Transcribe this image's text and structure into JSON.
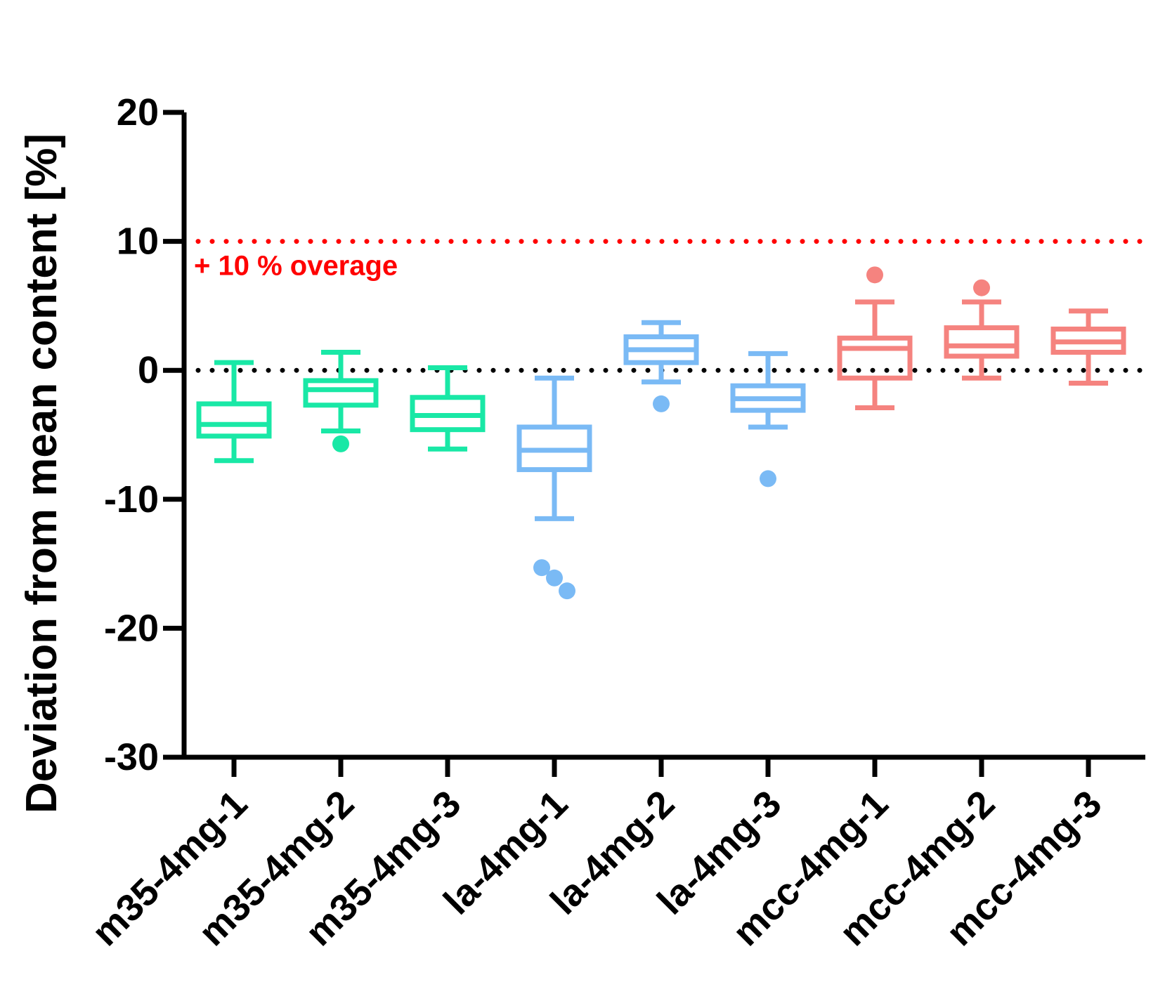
{
  "chart_data": {
    "type": "boxplot",
    "ylabel": "Deviation from mean content [%]",
    "ylim": [
      -30,
      20
    ],
    "yticks": [
      20,
      10,
      0,
      -10,
      -20,
      -30
    ],
    "grid": false,
    "reference_lines": [
      {
        "y": 10,
        "color": "#ff0000",
        "style": "dotted",
        "label": "+ 10 % overage"
      },
      {
        "y": 0,
        "color": "#000000",
        "style": "dotted",
        "label": ""
      }
    ],
    "categories": [
      "m35-4mg-1",
      "m35-4mg-2",
      "m35-4mg-3",
      "la-4mg-1",
      "la-4mg-2",
      "la-4mg-3",
      "mcc-4mg-1",
      "mcc-4mg-2",
      "mcc-4mg-3"
    ],
    "series": [
      {
        "name": "m35-4mg-1",
        "color": "#19e8a6",
        "whisker_low": -7.0,
        "q1": -5.1,
        "median": -4.2,
        "q3": -2.6,
        "whisker_high": 0.6,
        "outliers": []
      },
      {
        "name": "m35-4mg-2",
        "color": "#19e8a6",
        "whisker_low": -4.7,
        "q1": -2.7,
        "median": -1.5,
        "q3": -0.8,
        "whisker_high": 1.4,
        "outliers": [
          -5.7
        ]
      },
      {
        "name": "m35-4mg-3",
        "color": "#19e8a6",
        "whisker_low": -6.1,
        "q1": -4.6,
        "median": -3.5,
        "q3": -2.1,
        "whisker_high": 0.2,
        "outliers": []
      },
      {
        "name": "la-4mg-1",
        "color": "#7abaf5",
        "whisker_low": -11.5,
        "q1": -7.7,
        "median": -6.2,
        "q3": -4.4,
        "whisker_high": -0.6,
        "outliers": [
          -15.3,
          -16.1,
          -17.1
        ]
      },
      {
        "name": "la-4mg-2",
        "color": "#7abaf5",
        "whisker_low": -0.9,
        "q1": 0.6,
        "median": 1.6,
        "q3": 2.6,
        "whisker_high": 3.7,
        "outliers": [
          -2.6
        ]
      },
      {
        "name": "la-4mg-3",
        "color": "#7abaf5",
        "whisker_low": -4.4,
        "q1": -3.1,
        "median": -2.2,
        "q3": -1.2,
        "whisker_high": 1.3,
        "outliers": [
          -8.4
        ]
      },
      {
        "name": "mcc-4mg-1",
        "color": "#f5837f",
        "whisker_low": -2.9,
        "q1": -0.6,
        "median": 1.7,
        "q3": 2.5,
        "whisker_high": 5.3,
        "outliers": [
          7.4
        ]
      },
      {
        "name": "mcc-4mg-2",
        "color": "#f5837f",
        "whisker_low": -0.6,
        "q1": 1.1,
        "median": 1.9,
        "q3": 3.3,
        "whisker_high": 5.3,
        "outliers": [
          6.4
        ]
      },
      {
        "name": "mcc-4mg-3",
        "color": "#f5837f",
        "whisker_low": -1.0,
        "q1": 1.4,
        "median": 2.2,
        "q3": 3.2,
        "whisker_high": 4.6,
        "outliers": []
      }
    ]
  }
}
